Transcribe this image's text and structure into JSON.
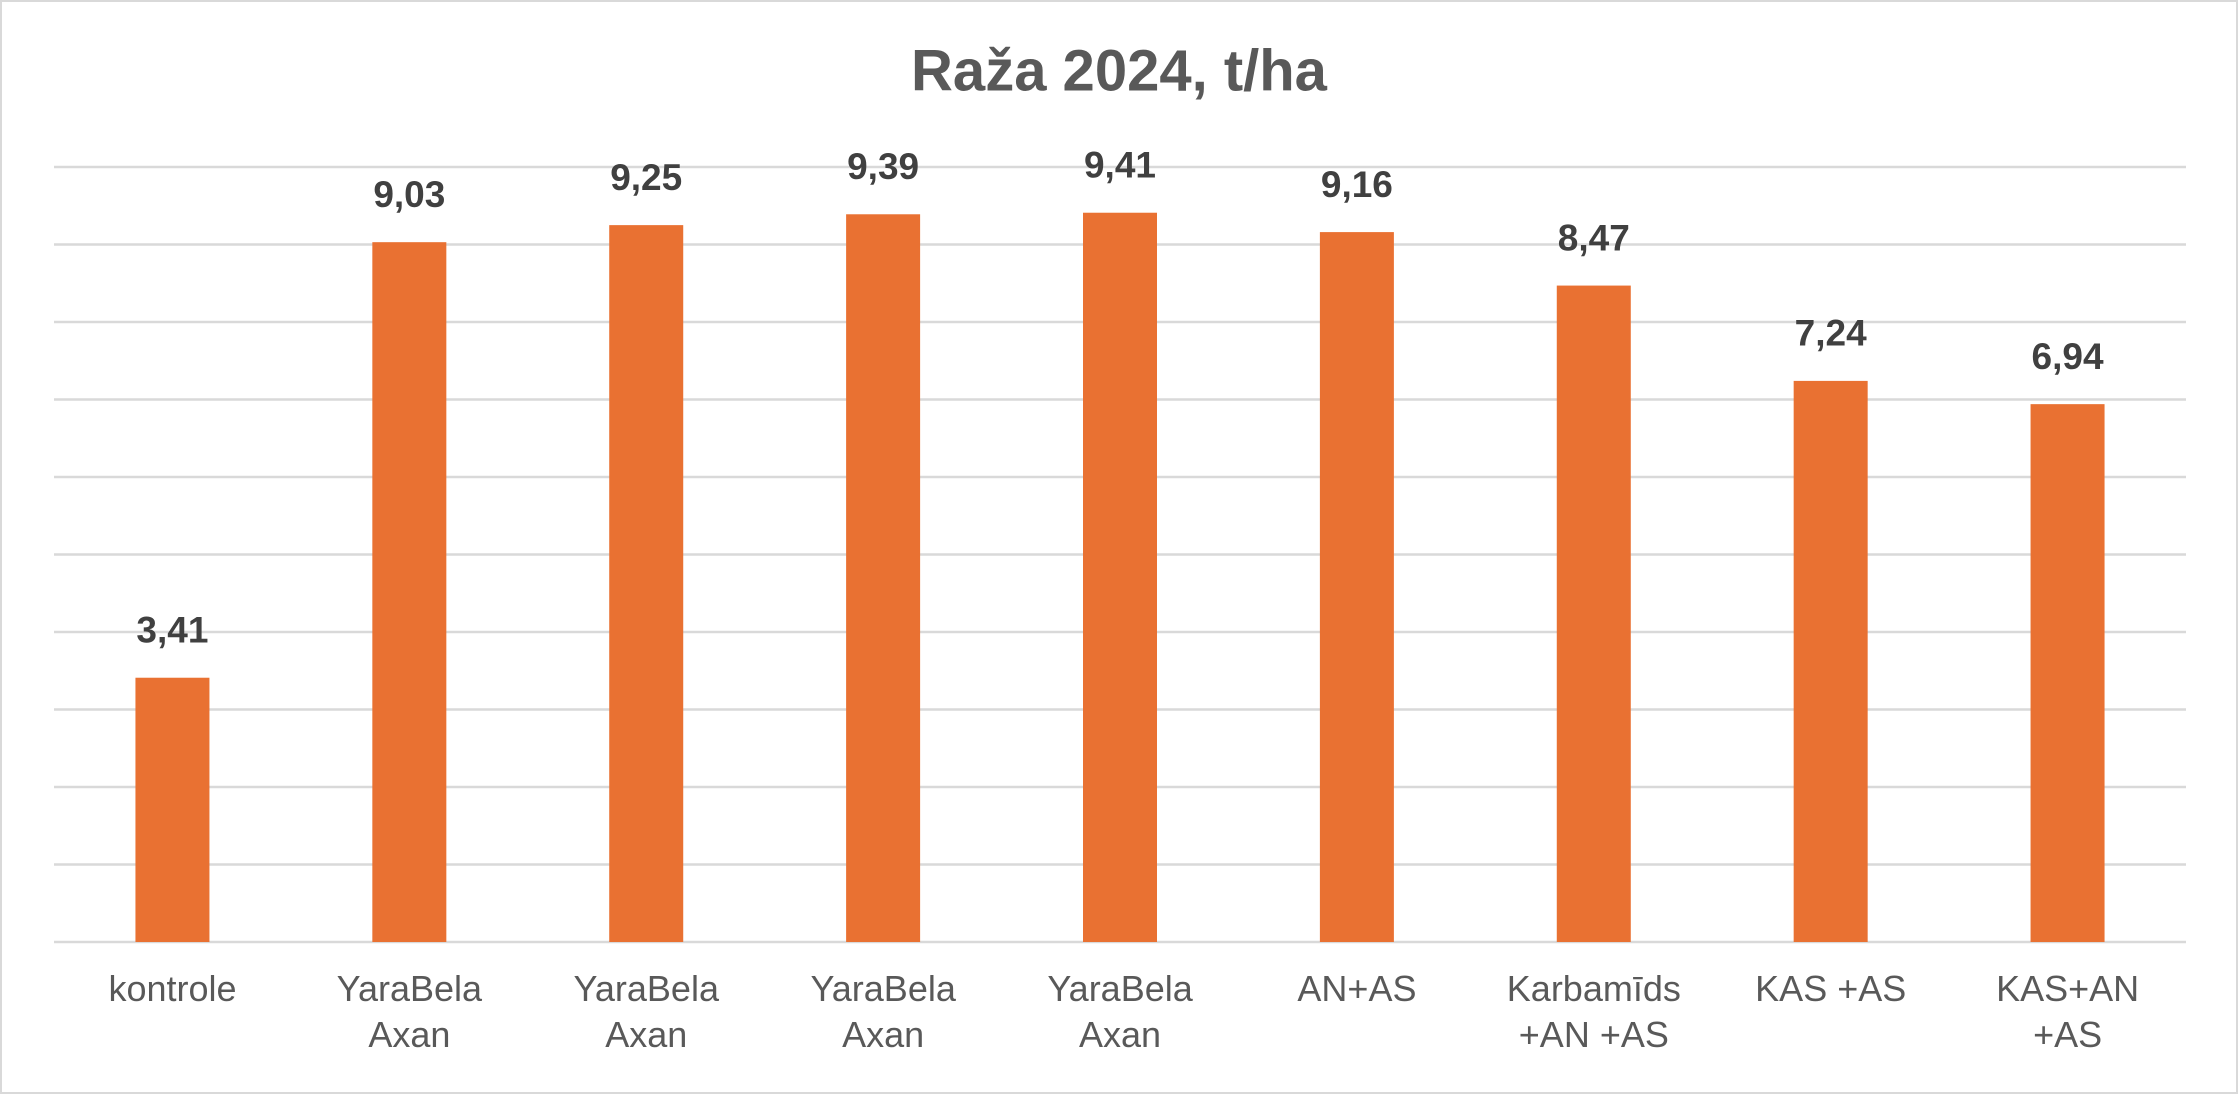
{
  "chart_data": {
    "type": "bar",
    "title": "Raža 2024,  t/ha",
    "categories": [
      "kontrole",
      "YaraBela\nAxan",
      "YaraBela\nAxan",
      "YaraBela\nAxan",
      "YaraBela\nAxan",
      "AN+AS",
      "Karbamīds\n+AN +AS",
      "KAS +AS",
      "KAS+AN\n+AS"
    ],
    "values": [
      3.41,
      9.03,
      9.25,
      9.39,
      9.41,
      9.16,
      8.47,
      7.24,
      6.94
    ],
    "value_labels": [
      "3,41",
      "9,03",
      "9,25",
      "9,39",
      "9,41",
      "9,16",
      "8,47",
      "7,24",
      "6,94"
    ],
    "color": "#e97132",
    "ylim": [
      0,
      10
    ],
    "yticks": [
      0,
      1,
      2,
      3,
      4,
      5,
      6,
      7,
      8,
      9,
      10
    ],
    "grid": true
  }
}
